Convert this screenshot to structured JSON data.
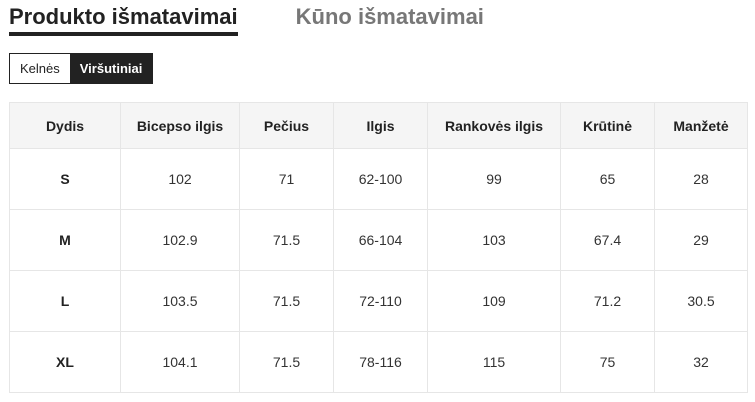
{
  "tabs": [
    {
      "label": "Produkto išmatavimai",
      "active": true
    },
    {
      "label": "Kūno išmatavimai",
      "active": false
    }
  ],
  "toggle": [
    {
      "label": "Kelnės",
      "active": false
    },
    {
      "label": "Viršutiniai",
      "active": true
    }
  ],
  "table": {
    "headers": [
      "Dydis",
      "Bicepso ilgis",
      "Pečius",
      "Ilgis",
      "Rankovės ilgis",
      "Krūtinė",
      "Manžetė"
    ],
    "rows": [
      [
        "S",
        "102",
        "71",
        "62-100",
        "99",
        "65",
        "28"
      ],
      [
        "M",
        "102.9",
        "71.5",
        "66-104",
        "103",
        "67.4",
        "29"
      ],
      [
        "L",
        "103.5",
        "71.5",
        "72-110",
        "109",
        "71.2",
        "30.5"
      ],
      [
        "XL",
        "104.1",
        "71.5",
        "78-116",
        "115",
        "75",
        "32"
      ]
    ]
  }
}
